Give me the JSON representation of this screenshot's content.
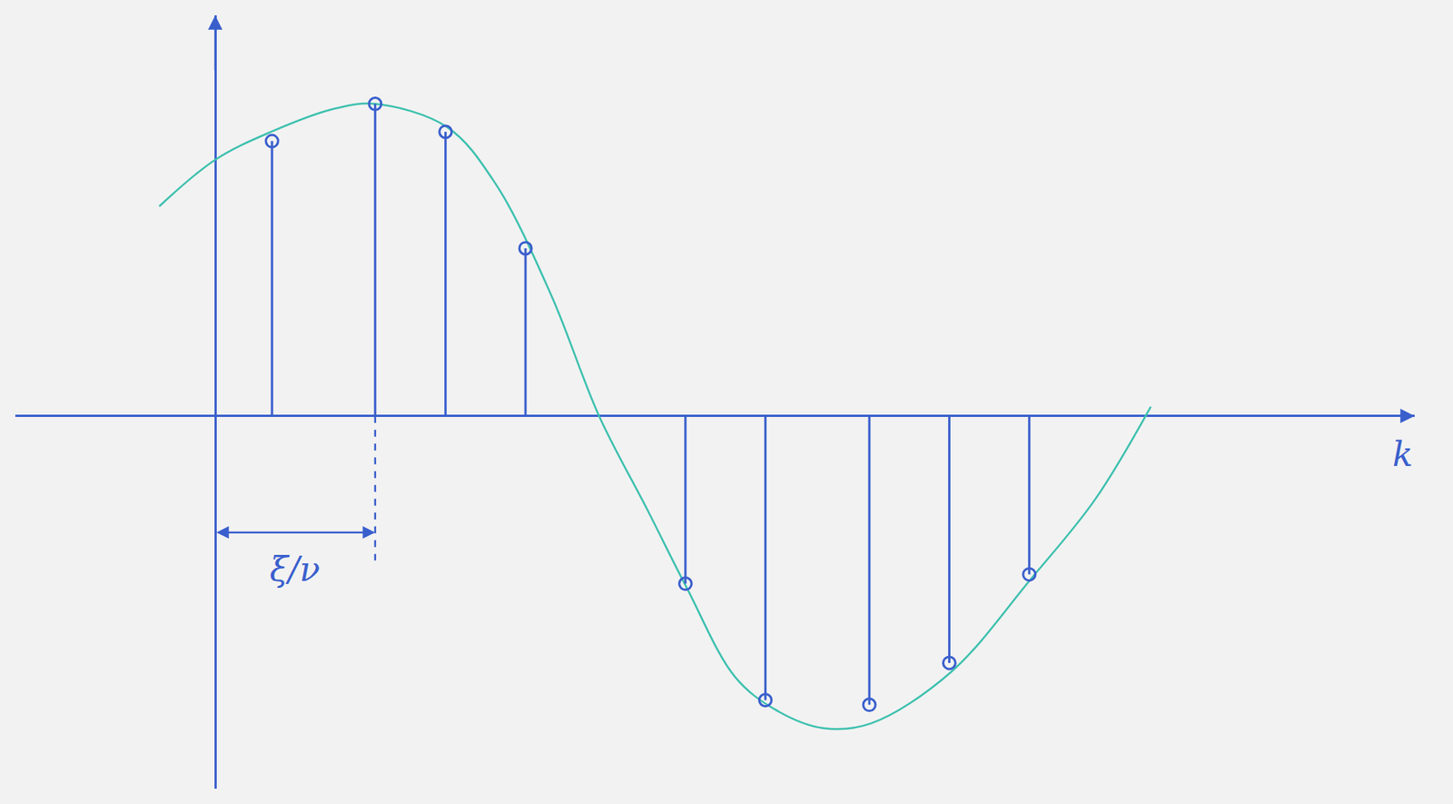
{
  "chart_data": {
    "type": "stem",
    "x_label": "k",
    "x": [
      0.71,
      2.0,
      2.88,
      3.88,
      5.88,
      6.88,
      8.18,
      9.18,
      10.18
    ],
    "values": [
      2.95,
      3.35,
      3.05,
      1.8,
      -1.8,
      -3.05,
      -3.1,
      -2.65,
      -1.7
    ],
    "color": "#3a5fcd",
    "marker": "open circle",
    "curve": {
      "color": "#3cc0ae",
      "x": [
        -0.7,
        0.0,
        0.7,
        1.5,
        2.0,
        2.9,
        3.5,
        4.2,
        4.8,
        5.4,
        5.9,
        6.5,
        7.0,
        7.6,
        8.2,
        9.2,
        10.2,
        11.0,
        11.7
      ],
      "values": [
        2.25,
        2.75,
        3.05,
        3.3,
        3.35,
        3.1,
        2.5,
        1.3,
        0.0,
        -1.0,
        -1.85,
        -2.8,
        -3.15,
        -3.35,
        -3.3,
        -2.75,
        -1.75,
        -0.9,
        0.1
      ]
    },
    "xlim": [
      -2.5,
      15.0
    ],
    "ylim": [
      -4.0,
      4.3
    ],
    "tick_labels": false,
    "grid": false,
    "annotations": [
      {
        "text": "ξ/ν",
        "x": [
          0.0,
          2.0
        ],
        "y": -1.25
      }
    ]
  }
}
